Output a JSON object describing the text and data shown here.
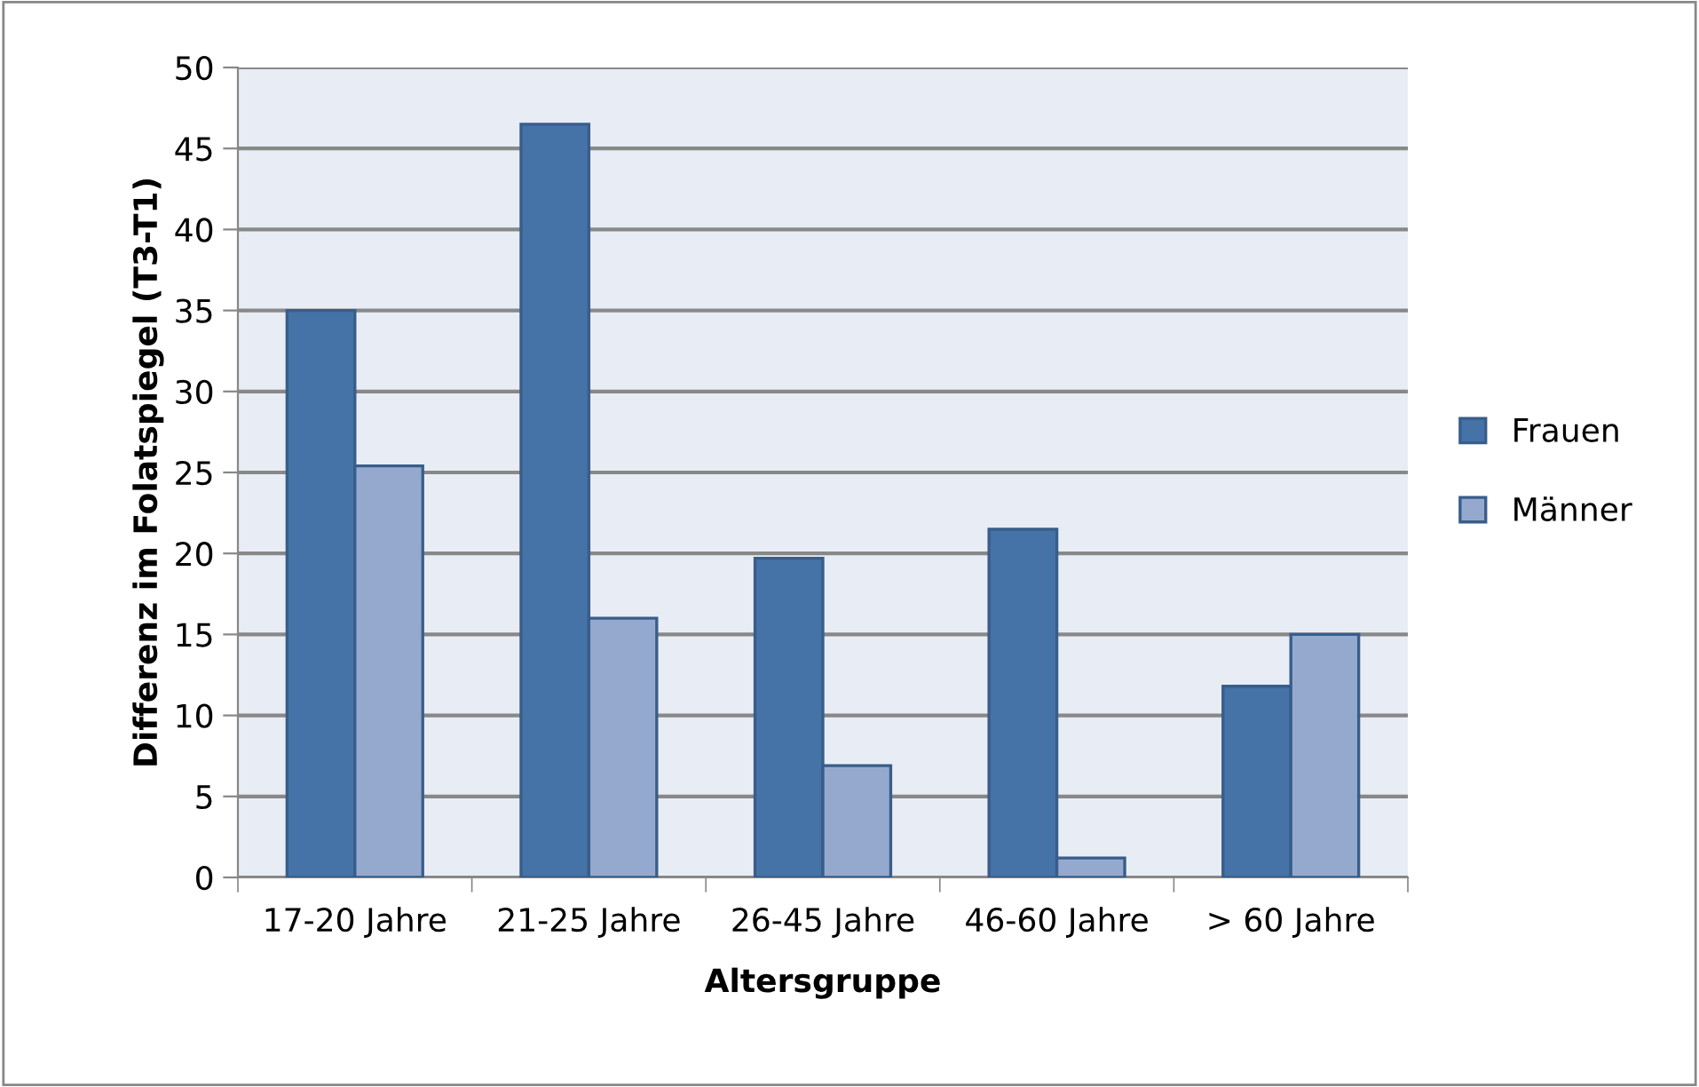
{
  "chart_data": {
    "type": "bar",
    "xlabel": "Altersgruppe",
    "ylabel": "Differenz im Folatspiegel (T3-T1)",
    "categories": [
      "17-20 Jahre",
      "21-25 Jahre",
      "26-45 Jahre",
      "46-60 Jahre",
      "> 60 Jahre"
    ],
    "series": [
      {
        "name": "Frauen",
        "color": "#4573a7",
        "values": [
          35,
          46.5,
          19.7,
          21.5,
          11.8
        ]
      },
      {
        "name": "Männer",
        "color": "#95a9cf",
        "values": [
          25.4,
          16.0,
          6.9,
          1.2,
          15.0
        ]
      }
    ],
    "ylim": [
      0,
      50
    ],
    "yticks": [
      0,
      5,
      10,
      15,
      20,
      25,
      30,
      35,
      40,
      45,
      50
    ],
    "grid": "y",
    "legend": "right"
  }
}
